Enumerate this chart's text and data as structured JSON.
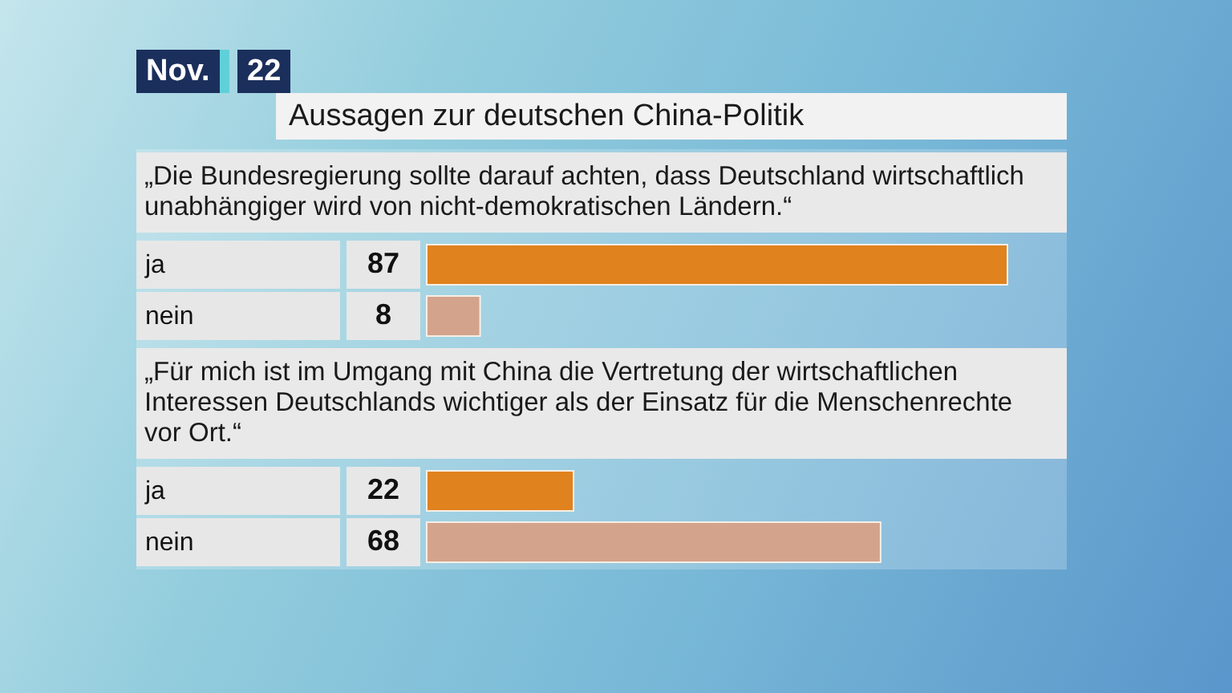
{
  "chart_data": [
    {
      "type": "bar",
      "orientation": "horizontal",
      "title": "Aussagen zur deutschen China-Politik",
      "subtitle": "„Die Bundesregierung sollte darauf achten, dass Deutschland wirtschaftlich unabhängiger wird von nicht-demokratischen Ländern.“",
      "annotations": [
        "Nov. 22"
      ],
      "categories": [
        "ja",
        "nein"
      ],
      "values": [
        87,
        8
      ],
      "colors": [
        "#e0821e",
        "#d4a38c"
      ],
      "data_labels": true,
      "tick_labels": "y"
    },
    {
      "type": "bar",
      "orientation": "horizontal",
      "title": "„Für mich ist im Umgang mit China die Vertretung der wirtschaftlichen Interessen Deutschlands wichtiger als der Einsatz für die Menschenrechte vor Ort.“",
      "categories": [
        "ja",
        "nein"
      ],
      "values": [
        22,
        68
      ],
      "colors": [
        "#e0821e",
        "#d4a38c"
      ],
      "data_labels": true,
      "tick_labels": "y"
    }
  ]
}
